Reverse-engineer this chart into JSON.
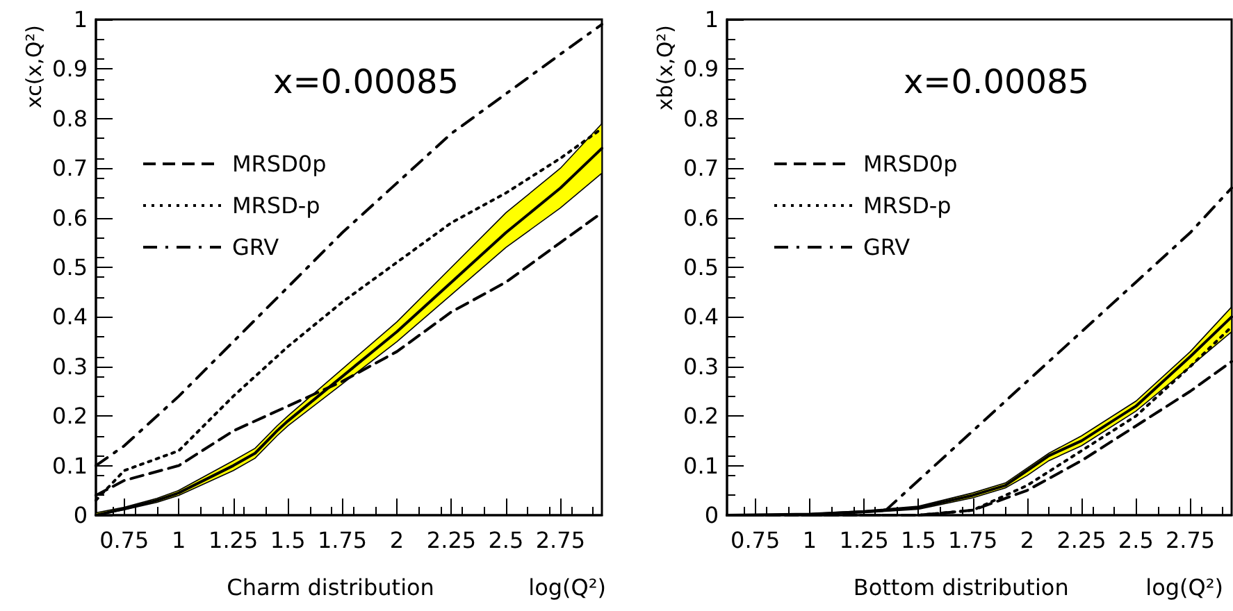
{
  "chart_data": [
    {
      "type": "line",
      "title": "x=0.00085",
      "xlabel": "log(Q²)",
      "ylabel": "xc(x,Q²)",
      "annotations": [
        "Charm distribution"
      ],
      "xlim": [
        0.62,
        2.94
      ],
      "xticks": [
        0.75,
        1,
        1.25,
        1.5,
        1.75,
        2,
        2.25,
        2.5,
        2.75
      ],
      "ylim": [
        0,
        1
      ],
      "yticks": [
        0,
        0.1,
        0.2,
        0.3,
        0.4,
        0.5,
        0.6,
        0.7,
        0.8,
        0.9,
        1
      ],
      "grid": false,
      "legend": "top left",
      "marker": "none",
      "series": [
        {
          "color": "#000000",
          "line_style": "solid",
          "x": [
            0.62,
            0.75,
            0.9,
            1.0,
            1.25,
            1.35,
            1.45,
            1.5,
            1.75,
            2.0,
            2.25,
            2.5,
            2.75,
            2.94
          ],
          "values": [
            0.0,
            0.013,
            0.03,
            0.045,
            0.1,
            0.125,
            0.17,
            0.19,
            0.28,
            0.37,
            0.47,
            0.57,
            0.66,
            0.74
          ],
          "lower": [
            0.0,
            0.011,
            0.026,
            0.04,
            0.09,
            0.115,
            0.16,
            0.18,
            0.265,
            0.35,
            0.445,
            0.54,
            0.62,
            0.69
          ],
          "upper": [
            0.005,
            0.016,
            0.034,
            0.05,
            0.11,
            0.135,
            0.18,
            0.2,
            0.295,
            0.39,
            0.5,
            0.61,
            0.7,
            0.79
          ]
        },
        {
          "name": "MRSD0p",
          "color": "#000000",
          "line_style": "dashed",
          "x": [
            0.62,
            0.75,
            1.0,
            1.25,
            1.5,
            1.75,
            2.0,
            2.25,
            2.5,
            2.75,
            2.94
          ],
          "values": [
            0.04,
            0.07,
            0.1,
            0.17,
            0.22,
            0.27,
            0.33,
            0.41,
            0.47,
            0.55,
            0.61
          ]
        },
        {
          "name": "MRSD-p",
          "color": "#000000",
          "line_style": "dotted",
          "x": [
            0.62,
            0.75,
            1.0,
            1.25,
            1.5,
            1.75,
            2.0,
            2.25,
            2.5,
            2.75,
            2.94
          ],
          "values": [
            0.03,
            0.09,
            0.13,
            0.24,
            0.34,
            0.43,
            0.51,
            0.59,
            0.65,
            0.72,
            0.78
          ]
        },
        {
          "name": "GRV",
          "color": "#000000",
          "line_style": "dashdot",
          "x": [
            0.62,
            0.75,
            1.0,
            1.25,
            1.5,
            1.75,
            2.0,
            2.25,
            2.5,
            2.75,
            2.94
          ],
          "values": [
            0.1,
            0.14,
            0.24,
            0.35,
            0.46,
            0.57,
            0.67,
            0.77,
            0.85,
            0.93,
            0.99
          ]
        }
      ]
    },
    {
      "type": "line",
      "title": "x=0.00085",
      "xlabel": "log(Q²)",
      "ylabel": "xb(x,Q²)",
      "annotations": [
        "Bottom distribution"
      ],
      "xlim": [
        0.62,
        2.94
      ],
      "xticks": [
        0.75,
        1,
        1.25,
        1.5,
        1.75,
        2,
        2.25,
        2.5,
        2.75
      ],
      "ylim": [
        0,
        1
      ],
      "yticks": [
        0,
        0.1,
        0.2,
        0.3,
        0.4,
        0.5,
        0.6,
        0.7,
        0.8,
        0.9,
        1
      ],
      "grid": false,
      "legend": "top left",
      "marker": "none",
      "series": [
        {
          "color": "#000000",
          "line_style": "solid",
          "x": [
            0.62,
            1.0,
            1.25,
            1.5,
            1.75,
            1.9,
            2.0,
            2.1,
            2.25,
            2.5,
            2.75,
            2.94
          ],
          "values": [
            0.0,
            0.002,
            0.007,
            0.015,
            0.04,
            0.06,
            0.09,
            0.12,
            0.15,
            0.22,
            0.32,
            0.4
          ],
          "lower": [
            0.0,
            0.001,
            0.005,
            0.012,
            0.035,
            0.055,
            0.08,
            0.11,
            0.14,
            0.21,
            0.3,
            0.37
          ],
          "upper": [
            0.0,
            0.003,
            0.009,
            0.018,
            0.045,
            0.065,
            0.095,
            0.125,
            0.16,
            0.23,
            0.33,
            0.42
          ]
        },
        {
          "name": "MRSD0p",
          "color": "#000000",
          "line_style": "dashed",
          "x": [
            0.62,
            1.5,
            1.75,
            2.0,
            2.25,
            2.5,
            2.75,
            2.94
          ],
          "values": [
            0.0,
            0.0,
            0.01,
            0.05,
            0.11,
            0.18,
            0.25,
            0.31
          ]
        },
        {
          "name": "MRSD-p",
          "color": "#000000",
          "line_style": "dotted",
          "x": [
            0.62,
            1.5,
            1.75,
            2.0,
            2.25,
            2.5,
            2.75,
            2.94
          ],
          "values": [
            0.0,
            0.0,
            0.01,
            0.06,
            0.13,
            0.2,
            0.3,
            0.38
          ]
        },
        {
          "name": "GRV",
          "color": "#000000",
          "line_style": "dashdot",
          "x": [
            1.35,
            1.5,
            1.75,
            2.0,
            2.25,
            2.5,
            2.75,
            2.94
          ],
          "values": [
            0.01,
            0.07,
            0.17,
            0.27,
            0.37,
            0.47,
            0.57,
            0.66
          ]
        }
      ]
    }
  ]
}
